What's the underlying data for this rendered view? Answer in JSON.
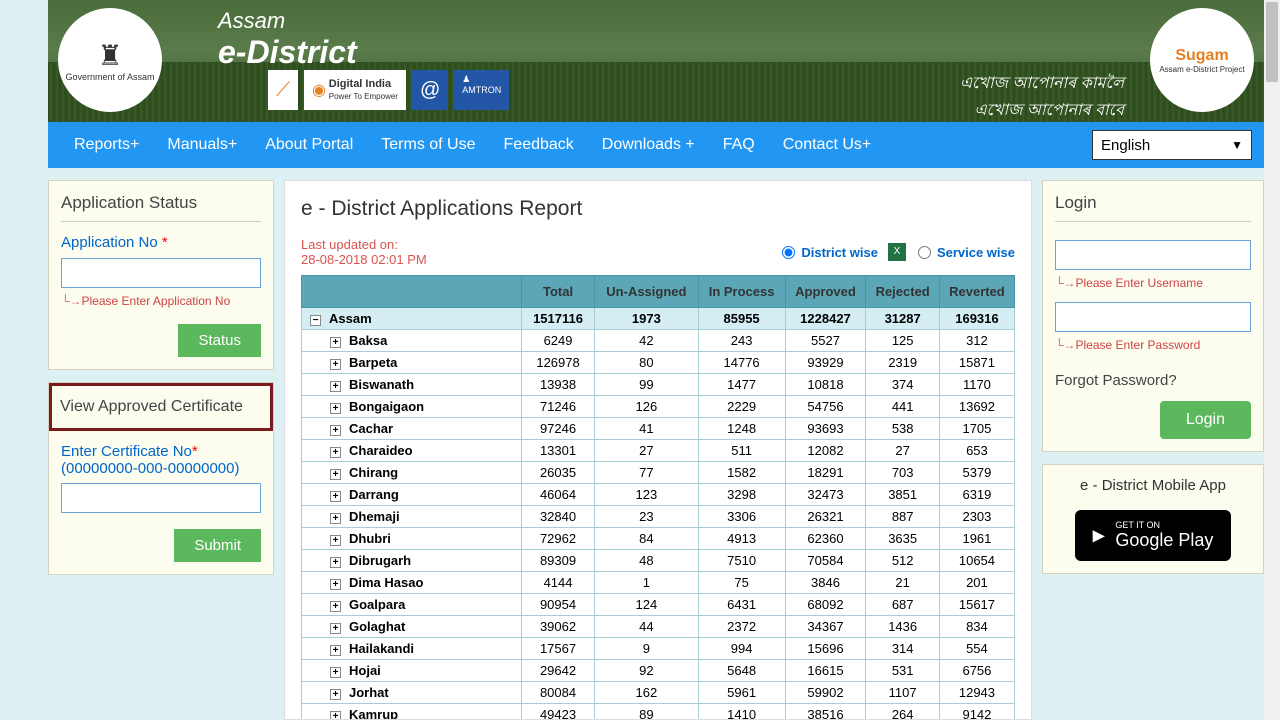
{
  "banner": {
    "title_top": "Assam",
    "title_main": "e-District",
    "gov_label": "Government of Assam",
    "sugam_label": "Sugam",
    "sugam_sub": "Assam e-District Project",
    "script_line1": "এখোজ আপোনাৰ কামলৈ",
    "script_line2": "এখোজ আপোনাৰ বাবে",
    "badges": [
      "⟋",
      "Digital India",
      "@",
      "AMTRON"
    ]
  },
  "nav": {
    "items": [
      "Reports+",
      "Manuals+",
      "About Portal",
      "Terms of Use",
      "Feedback",
      "Downloads +",
      "FAQ",
      "Contact Us+"
    ],
    "lang": "English"
  },
  "app_status": {
    "title": "Application Status",
    "label": "Application No",
    "hint": "Please Enter Application No",
    "btn": "Status"
  },
  "cert": {
    "title": "View Approved Certificate",
    "label": "Enter Certificate No",
    "format": "(00000000-000-00000000)",
    "btn": "Submit"
  },
  "report": {
    "title": "e - District Applications Report",
    "updated_label": "Last updated on:",
    "updated_time": "28-08-2018 02:01 PM",
    "view_district": "District wise",
    "view_service": "Service wise",
    "columns": [
      "",
      "Total",
      "Un-Assigned",
      "In Process",
      "Approved",
      "Rejected",
      "Reverted"
    ],
    "assam": [
      "Assam",
      "1517116",
      "1973",
      "85955",
      "1228427",
      "31287",
      "169316"
    ],
    "rows": [
      [
        "Baksa",
        "6249",
        "42",
        "243",
        "5527",
        "125",
        "312"
      ],
      [
        "Barpeta",
        "126978",
        "80",
        "14776",
        "93929",
        "2319",
        "15871"
      ],
      [
        "Biswanath",
        "13938",
        "99",
        "1477",
        "10818",
        "374",
        "1170"
      ],
      [
        "Bongaigaon",
        "71246",
        "126",
        "2229",
        "54756",
        "441",
        "13692"
      ],
      [
        "Cachar",
        "97246",
        "41",
        "1248",
        "93693",
        "538",
        "1705"
      ],
      [
        "Charaideo",
        "13301",
        "27",
        "511",
        "12082",
        "27",
        "653"
      ],
      [
        "Chirang",
        "26035",
        "77",
        "1582",
        "18291",
        "703",
        "5379"
      ],
      [
        "Darrang",
        "46064",
        "123",
        "3298",
        "32473",
        "3851",
        "6319"
      ],
      [
        "Dhemaji",
        "32840",
        "23",
        "3306",
        "26321",
        "887",
        "2303"
      ],
      [
        "Dhubri",
        "72962",
        "84",
        "4913",
        "62360",
        "3635",
        "1961"
      ],
      [
        "Dibrugarh",
        "89309",
        "48",
        "7510",
        "70584",
        "512",
        "10654"
      ],
      [
        "Dima Hasao",
        "4144",
        "1",
        "75",
        "3846",
        "21",
        "201"
      ],
      [
        "Goalpara",
        "90954",
        "124",
        "6431",
        "68092",
        "687",
        "15617"
      ],
      [
        "Golaghat",
        "39062",
        "44",
        "2372",
        "34367",
        "1436",
        "834"
      ],
      [
        "Hailakandi",
        "17567",
        "9",
        "994",
        "15696",
        "314",
        "554"
      ],
      [
        "Hojai",
        "29642",
        "92",
        "5648",
        "16615",
        "531",
        "6756"
      ],
      [
        "Jorhat",
        "80084",
        "162",
        "5961",
        "59902",
        "1107",
        "12943"
      ],
      [
        "Kamrup",
        "49423",
        "89",
        "1410",
        "38516",
        "264",
        "9142"
      ]
    ]
  },
  "login": {
    "title": "Login",
    "hint_user": "Please Enter Username",
    "hint_pass": "Please Enter Password",
    "forgot": "Forgot Password?",
    "btn": "Login"
  },
  "mobile": {
    "title": "e - District Mobile App",
    "gp_small": "GET IT ON",
    "gp_big": "Google Play"
  }
}
